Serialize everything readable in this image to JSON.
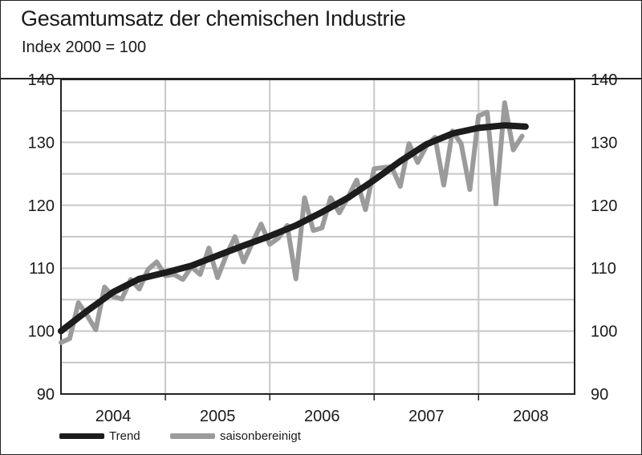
{
  "title": "Gesamtumsatz der chemischen Industrie",
  "subtitle": "Index 2000 = 100",
  "colors": {
    "trend": "#1c1c1c",
    "seasonal": "#9b9b9b",
    "grid": "#c8c8c8",
    "axis": "#222222"
  },
  "legend": {
    "trend_label": "Trend",
    "seasonal_label": "saisonbereinigt"
  },
  "chart_data": {
    "type": "line",
    "title": "Gesamtumsatz der chemischen Industrie",
    "subtitle": "Index 2000 = 100",
    "xlabel": "",
    "ylabel": "",
    "ylim": [
      90,
      140
    ],
    "yticks": [
      90,
      100,
      110,
      120,
      130,
      140
    ],
    "y_axis_sides": [
      "left",
      "right"
    ],
    "xlim": [
      2004.0,
      2008.92
    ],
    "x_tick_labels": [
      "2004",
      "2005",
      "2006",
      "2007",
      "2008"
    ],
    "x_tick_positions": [
      2004.5,
      2005.5,
      2006.5,
      2007.5,
      2008.5
    ],
    "x_year_boundaries": [
      2005,
      2006,
      2007,
      2008
    ],
    "grid": true,
    "series": [
      {
        "name": "Trend",
        "role": "trend",
        "x": [
          2004.0,
          2004.25,
          2004.5,
          2004.75,
          2005.0,
          2005.25,
          2005.5,
          2005.75,
          2006.0,
          2006.25,
          2006.5,
          2006.75,
          2007.0,
          2007.25,
          2007.5,
          2007.75,
          2008.0,
          2008.25,
          2008.45
        ],
        "values": [
          100.0,
          103.2,
          106.2,
          108.3,
          109.3,
          110.4,
          112.0,
          113.6,
          115.1,
          116.8,
          118.9,
          121.2,
          124.0,
          127.0,
          129.7,
          131.4,
          132.3,
          132.7,
          132.5
        ]
      },
      {
        "name": "saisonbereinigt",
        "role": "seasonal",
        "x": [
          2004.0,
          2004.083,
          2004.167,
          2004.25,
          2004.333,
          2004.417,
          2004.5,
          2004.583,
          2004.667,
          2004.75,
          2004.833,
          2004.917,
          2005.0,
          2005.083,
          2005.167,
          2005.25,
          2005.333,
          2005.417,
          2005.5,
          2005.583,
          2005.667,
          2005.75,
          2005.833,
          2005.917,
          2006.0,
          2006.083,
          2006.167,
          2006.25,
          2006.333,
          2006.417,
          2006.5,
          2006.583,
          2006.667,
          2006.75,
          2006.833,
          2006.917,
          2007.0,
          2007.083,
          2007.167,
          2007.25,
          2007.333,
          2007.417,
          2007.5,
          2007.583,
          2007.667,
          2007.75,
          2007.833,
          2007.917,
          2008.0,
          2008.083,
          2008.167,
          2008.25,
          2008.333,
          2008.417
        ],
        "values": [
          98.2,
          98.8,
          104.5,
          102.5,
          100.2,
          107.0,
          105.5,
          105.1,
          108.2,
          106.7,
          109.8,
          111.0,
          108.8,
          109.0,
          108.2,
          110.2,
          109.0,
          113.2,
          108.5,
          112.0,
          115.0,
          111.0,
          114.0,
          117.0,
          113.8,
          114.8,
          116.8,
          108.3,
          121.2,
          116.0,
          116.4,
          121.2,
          118.8,
          121.3,
          124.0,
          119.3,
          125.8,
          126.0,
          126.1,
          123.0,
          129.8,
          126.8,
          129.4,
          130.8,
          123.2,
          131.8,
          129.8,
          122.5,
          134.2,
          134.8,
          120.2,
          136.3,
          128.8,
          131.0
        ]
      }
    ]
  }
}
